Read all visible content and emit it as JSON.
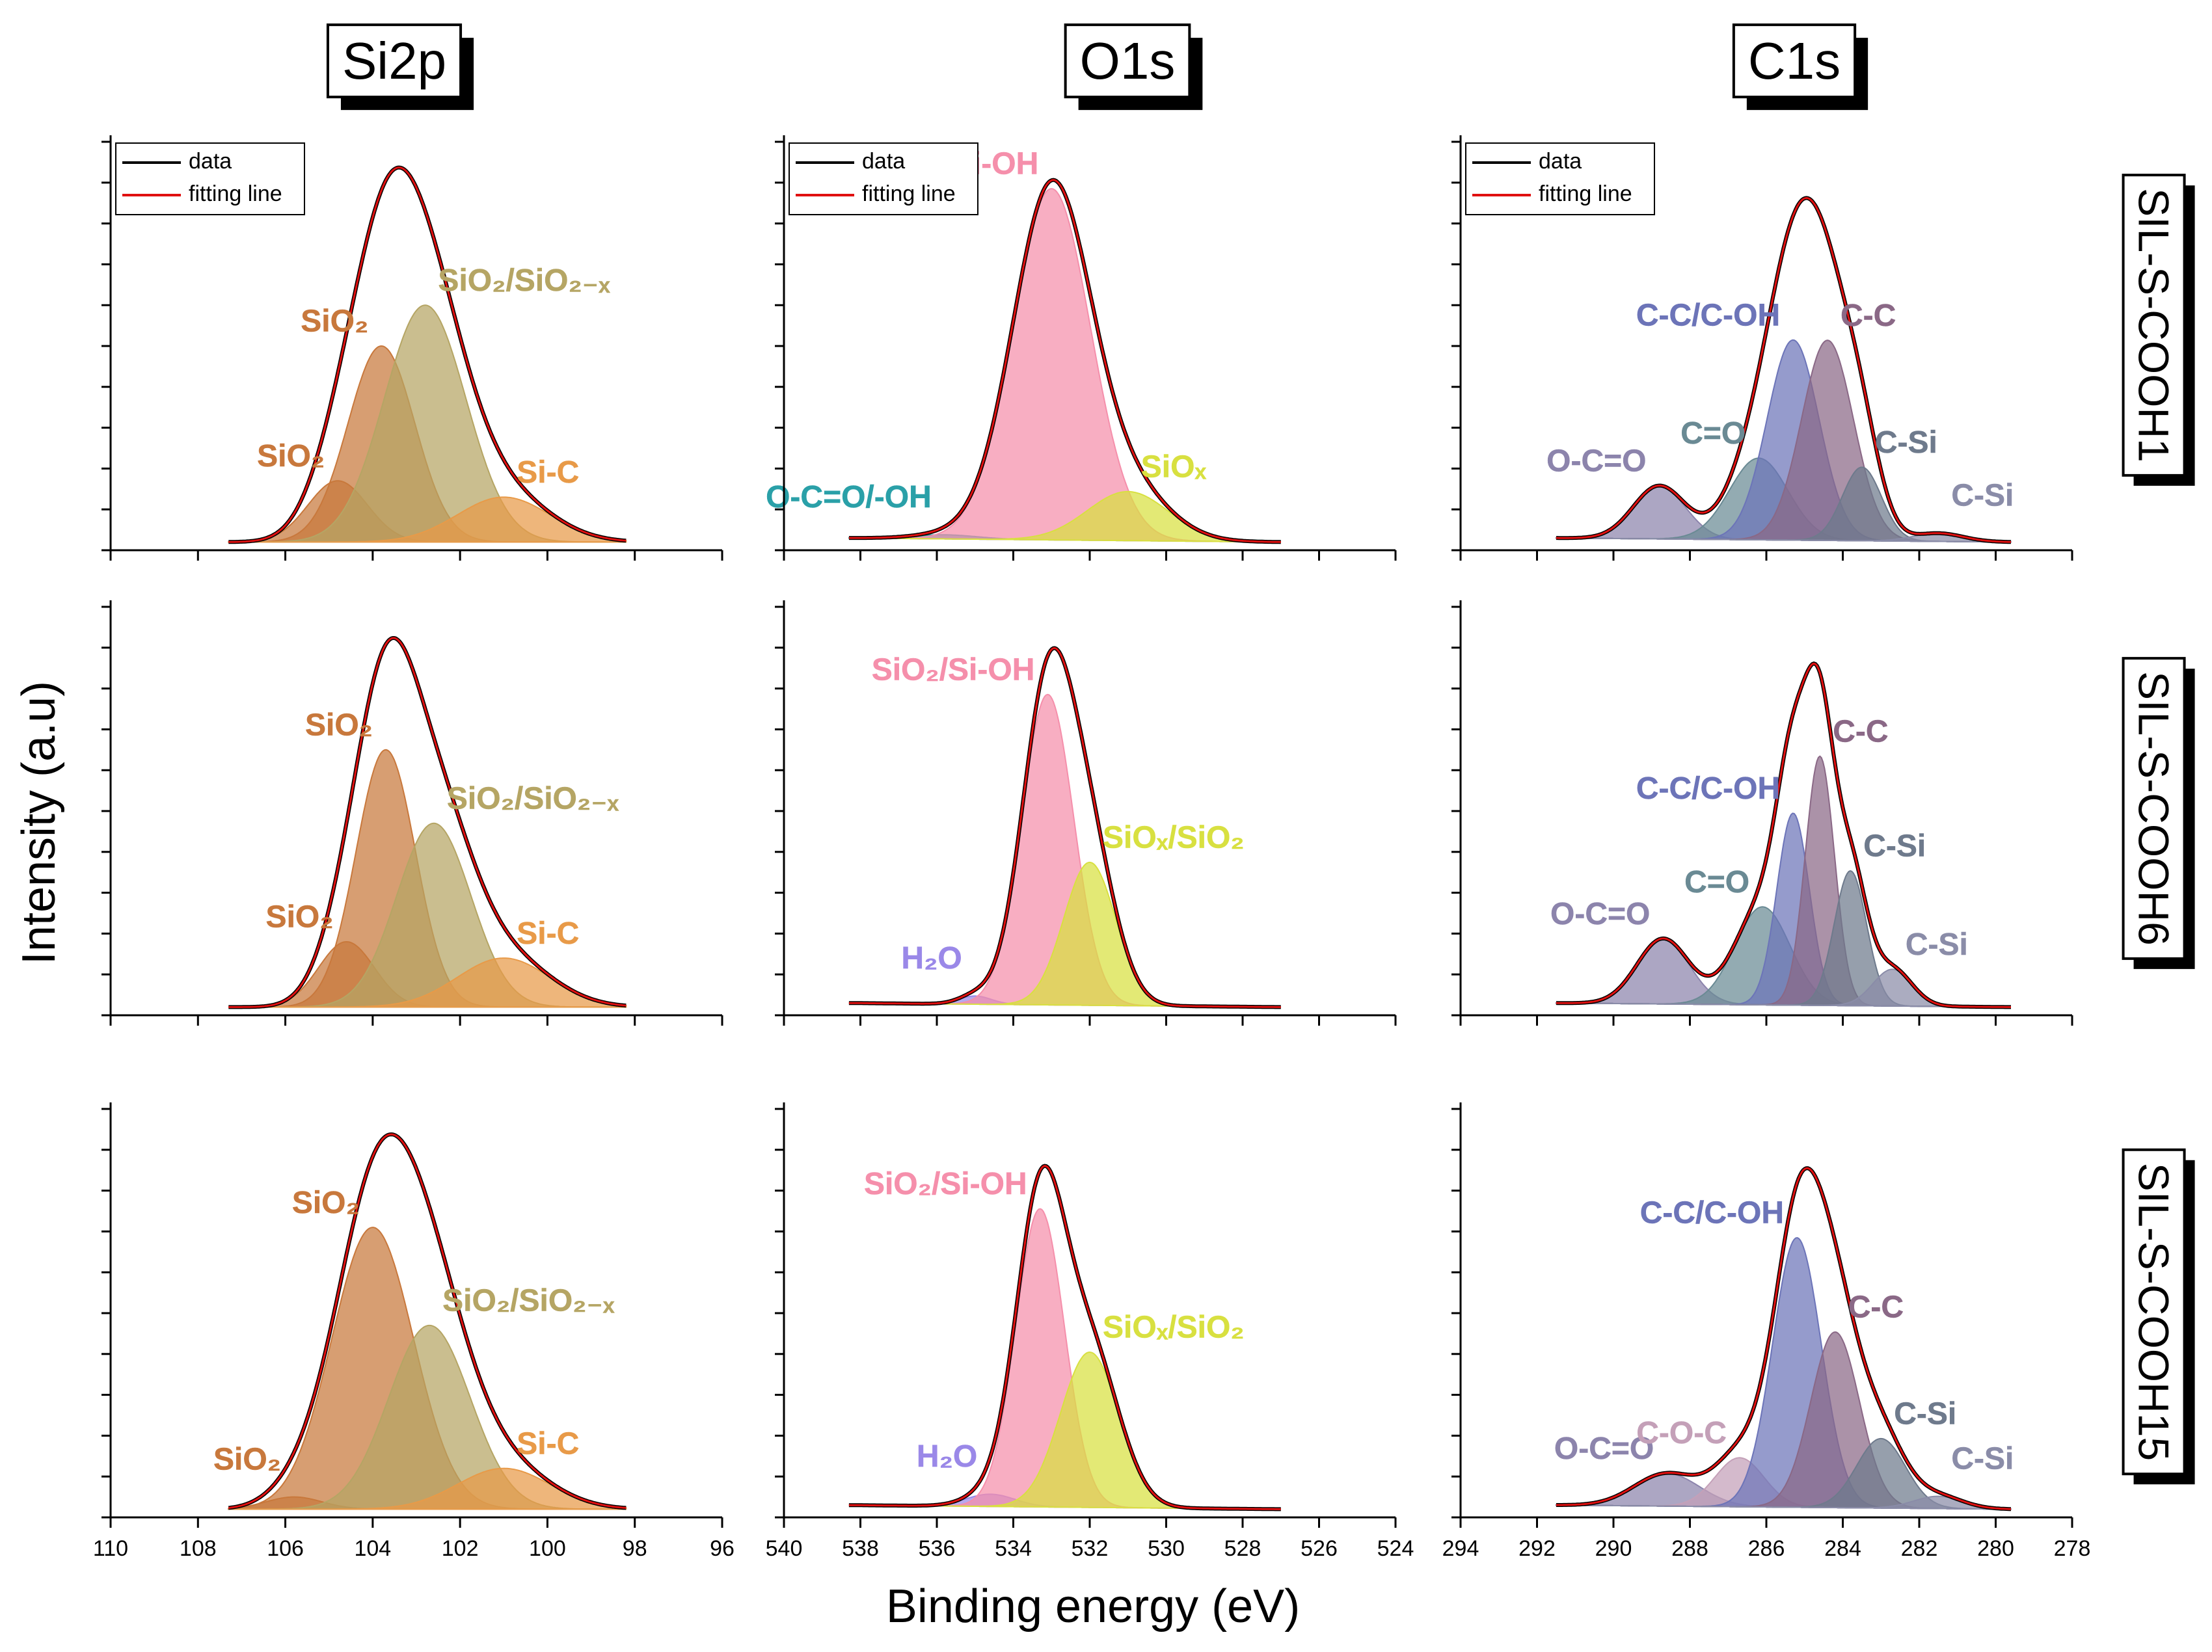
{
  "figure": {
    "x_label": "Binding energy (eV)",
    "y_label": "Intensity (a.u)"
  },
  "chart_data": [
    {
      "type": "xps",
      "title": "Si2p",
      "xlim": [
        110,
        96
      ],
      "xticks": [
        110,
        108,
        106,
        104,
        102,
        100,
        98,
        96
      ],
      "xtick_labels": false,
      "ylim": [
        0,
        100
      ],
      "yticks": [
        0,
        10,
        20,
        30,
        40,
        50,
        60,
        70,
        80,
        90,
        100
      ],
      "x_range": [
        107.3,
        98.2
      ],
      "background": [
        2,
        2
      ],
      "legend": [
        {
          "name": "data",
          "color": "#000000"
        },
        {
          "name": "fitting line",
          "color": "#e01010"
        }
      ],
      "components": [
        {
          "name": "SiO₂",
          "color": "#c8783c",
          "center": 104.8,
          "height": 15,
          "fwhm": 1.6
        },
        {
          "name": "SiO₂",
          "color": "#c8783c",
          "center": 103.8,
          "height": 48,
          "fwhm": 1.8
        },
        {
          "name": "SiO₂/SiO₂₋ₓ",
          "color": "#b5a564",
          "center": 102.8,
          "height": 58,
          "fwhm": 2.2
        },
        {
          "name": "Si-C",
          "color": "#e89a48",
          "center": 101.0,
          "height": 11,
          "fwhm": 2.5
        }
      ]
    },
    {
      "type": "xps",
      "title": "O1s",
      "xlim": [
        540,
        524
      ],
      "xticks": [
        540,
        538,
        536,
        534,
        532,
        530,
        528,
        526,
        524
      ],
      "xtick_labels": false,
      "ylim": [
        0,
        100
      ],
      "yticks": [
        0,
        10,
        20,
        30,
        40,
        50,
        60,
        70,
        80,
        90,
        100
      ],
      "x_range": [
        538.3,
        527
      ],
      "background": [
        3,
        2
      ],
      "legend": [
        {
          "name": "data",
          "color": "#000000"
        },
        {
          "name": "fitting line",
          "color": "#e01010"
        }
      ],
      "components": [
        {
          "name": "O-C=O/-OH",
          "color": "#2aa0a8",
          "center": 535.8,
          "height": 1,
          "fwhm": 2
        },
        {
          "name": "SiO₂/Si-OH",
          "color": "#f58fab",
          "center": 533.0,
          "height": 86,
          "fwhm": 2.4
        },
        {
          "name": "SiOₓ",
          "color": "#d8e040",
          "center": 531.0,
          "height": 12,
          "fwhm": 2.5
        }
      ]
    },
    {
      "type": "xps",
      "title": "C1s",
      "side_label": "SIL-S-COOH1",
      "xlim": [
        294,
        278
      ],
      "xticks": [
        294,
        292,
        290,
        288,
        286,
        284,
        282,
        280,
        278
      ],
      "xtick_labels": false,
      "ylim": [
        0,
        100
      ],
      "yticks": [
        0,
        10,
        20,
        30,
        40,
        50,
        60,
        70,
        80,
        90,
        100
      ],
      "x_range": [
        291.5,
        279.6
      ],
      "background": [
        3,
        2
      ],
      "legend": [
        {
          "name": "data",
          "color": "#000000"
        },
        {
          "name": "fitting line",
          "color": "#e01010"
        }
      ],
      "components": [
        {
          "name": "O-C=O",
          "color": "#8c84ac",
          "center": 288.8,
          "height": 13,
          "fwhm": 1.6
        },
        {
          "name": "C=O",
          "color": "#6a8a94",
          "center": 286.2,
          "height": 20,
          "fwhm": 1.8
        },
        {
          "name": "C-C/C-OH",
          "color": "#6c74b8",
          "center": 285.3,
          "height": 49,
          "fwhm": 1.6
        },
        {
          "name": "C-C",
          "color": "#8a6886",
          "center": 284.4,
          "height": 49,
          "fwhm": 1.6
        },
        {
          "name": "C-Si",
          "color": "#6e7a8c",
          "center": 283.5,
          "height": 18,
          "fwhm": 1.2
        },
        {
          "name": "C-Si",
          "color": "#8a8ca8",
          "center": 281.5,
          "height": 2,
          "fwhm": 1.5
        }
      ]
    },
    {
      "type": "xps",
      "xlim": [
        110,
        96
      ],
      "xticks": [
        110,
        108,
        106,
        104,
        102,
        100,
        98,
        96
      ],
      "xtick_labels": false,
      "ylim": [
        0,
        100
      ],
      "yticks": [
        0,
        10,
        20,
        30,
        40,
        50,
        60,
        70,
        80,
        90,
        100
      ],
      "x_range": [
        107.3,
        98.2
      ],
      "background": [
        2,
        2
      ],
      "components": [
        {
          "name": "SiO₂",
          "color": "#c8783c",
          "center": 104.6,
          "height": 16,
          "fwhm": 1.5
        },
        {
          "name": "SiO₂",
          "color": "#c8783c",
          "center": 103.7,
          "height": 63,
          "fwhm": 1.6
        },
        {
          "name": "SiO₂/SiO₂₋ₓ",
          "color": "#b5a564",
          "center": 102.6,
          "height": 45,
          "fwhm": 2.0
        },
        {
          "name": "Si-C",
          "color": "#e89a48",
          "center": 101.0,
          "height": 12,
          "fwhm": 2.5
        }
      ]
    },
    {
      "type": "xps",
      "xlim": [
        540,
        524
      ],
      "xticks": [
        540,
        538,
        536,
        534,
        532,
        530,
        528,
        526,
        524
      ],
      "xtick_labels": false,
      "ylim": [
        0,
        100
      ],
      "yticks": [
        0,
        10,
        20,
        30,
        40,
        50,
        60,
        70,
        80,
        90,
        100
      ],
      "x_range": [
        538.3,
        527
      ],
      "background": [
        3,
        2
      ],
      "components": [
        {
          "name": "H₂O",
          "color": "#9a88e8",
          "center": 535.0,
          "height": 2,
          "fwhm": 1
        },
        {
          "name": "SiO₂/Si-OH",
          "color": "#f58fab",
          "center": 533.1,
          "height": 76,
          "fwhm": 1.6
        },
        {
          "name": "SiOₓ/SiO₂",
          "color": "#d8e040",
          "center": 532.0,
          "height": 35,
          "fwhm": 1.6
        }
      ]
    },
    {
      "type": "xps",
      "side_label": "SIL-S-COOH6",
      "xlim": [
        294,
        278
      ],
      "xticks": [
        294,
        292,
        290,
        288,
        286,
        284,
        282,
        280,
        278
      ],
      "xtick_labels": false,
      "ylim": [
        0,
        100
      ],
      "yticks": [
        0,
        10,
        20,
        30,
        40,
        50,
        60,
        70,
        80,
        90,
        100
      ],
      "x_range": [
        291.5,
        279.6
      ],
      "background": [
        3,
        2
      ],
      "components": [
        {
          "name": "O-C=O",
          "color": "#8c84ac",
          "center": 288.7,
          "height": 16,
          "fwhm": 1.6
        },
        {
          "name": "C=O",
          "color": "#6a8a94",
          "center": 286.1,
          "height": 24,
          "fwhm": 1.7
        },
        {
          "name": "C-C/C-OH",
          "color": "#6c74b8",
          "center": 285.3,
          "height": 47,
          "fwhm": 1.0
        },
        {
          "name": "C-C",
          "color": "#8a6886",
          "center": 284.6,
          "height": 61,
          "fwhm": 0.9
        },
        {
          "name": "C-Si",
          "color": "#6e7a8c",
          "center": 283.8,
          "height": 33,
          "fwhm": 1.0
        },
        {
          "name": "C-Si",
          "color": "#8a8ca8",
          "center": 282.7,
          "height": 9,
          "fwhm": 1.2
        }
      ]
    },
    {
      "type": "xps",
      "xlim": [
        110,
        96
      ],
      "xticks": [
        110,
        108,
        106,
        104,
        102,
        100,
        98,
        96
      ],
      "xtick_labels": true,
      "ylim": [
        0,
        100
      ],
      "yticks": [
        0,
        10,
        20,
        30,
        40,
        50,
        60,
        70,
        80,
        90,
        100
      ],
      "x_range": [
        107.3,
        98.2
      ],
      "background": [
        2,
        2
      ],
      "components": [
        {
          "name": "SiO₂",
          "color": "#c8783c",
          "center": 105.8,
          "height": 3,
          "fwhm": 1.5
        },
        {
          "name": "SiO₂",
          "color": "#c8783c",
          "center": 104.0,
          "height": 69,
          "fwhm": 2.2
        },
        {
          "name": "SiO₂/SiO₂₋ₓ",
          "color": "#b5a564",
          "center": 102.7,
          "height": 45,
          "fwhm": 2.2
        },
        {
          "name": "Si-C",
          "color": "#e89a48",
          "center": 101.0,
          "height": 10,
          "fwhm": 2.5
        }
      ]
    },
    {
      "type": "xps",
      "xlim": [
        540,
        524
      ],
      "xticks": [
        540,
        538,
        536,
        534,
        532,
        530,
        528,
        526,
        524
      ],
      "xtick_labels": true,
      "ylim": [
        0,
        100
      ],
      "yticks": [
        0,
        10,
        20,
        30,
        40,
        50,
        60,
        70,
        80,
        90,
        100
      ],
      "x_range": [
        538.3,
        527
      ],
      "background": [
        3,
        2
      ],
      "components": [
        {
          "name": "H₂O",
          "color": "#9a88e8",
          "center": 534.6,
          "height": 3,
          "fwhm": 1.5
        },
        {
          "name": "SiO₂/Si-OH",
          "color": "#f58fab",
          "center": 533.3,
          "height": 73,
          "fwhm": 1.5
        },
        {
          "name": "SiOₓ/SiO₂",
          "color": "#d8e040",
          "center": 532.0,
          "height": 38,
          "fwhm": 1.8
        }
      ]
    },
    {
      "type": "xps",
      "side_label": "SIL-S-COOH15",
      "xlim": [
        294,
        278
      ],
      "xticks": [
        294,
        292,
        290,
        288,
        286,
        284,
        282,
        280,
        278
      ],
      "xtick_labels": true,
      "ylim": [
        0,
        100
      ],
      "yticks": [
        0,
        10,
        20,
        30,
        40,
        50,
        60,
        70,
        80,
        90,
        100
      ],
      "x_range": [
        291.5,
        279.6
      ],
      "background": [
        3,
        2
      ],
      "components": [
        {
          "name": "O-C=O",
          "color": "#8c84ac",
          "center": 288.6,
          "height": 8,
          "fwhm": 2
        },
        {
          "name": "C-O-C",
          "color": "#c4a0b8",
          "center": 286.7,
          "height": 12,
          "fwhm": 1.5
        },
        {
          "name": "C-C/C-OH",
          "color": "#6c74b8",
          "center": 285.2,
          "height": 66,
          "fwhm": 1.5
        },
        {
          "name": "C-C",
          "color": "#8a6886",
          "center": 284.2,
          "height": 43,
          "fwhm": 1.5
        },
        {
          "name": "C-Si",
          "color": "#6e7a8c",
          "center": 283.0,
          "height": 17,
          "fwhm": 1.5
        },
        {
          "name": "C-Si",
          "color": "#8a8ca8",
          "center": 281.5,
          "height": 3,
          "fwhm": 1.5
        }
      ]
    }
  ]
}
